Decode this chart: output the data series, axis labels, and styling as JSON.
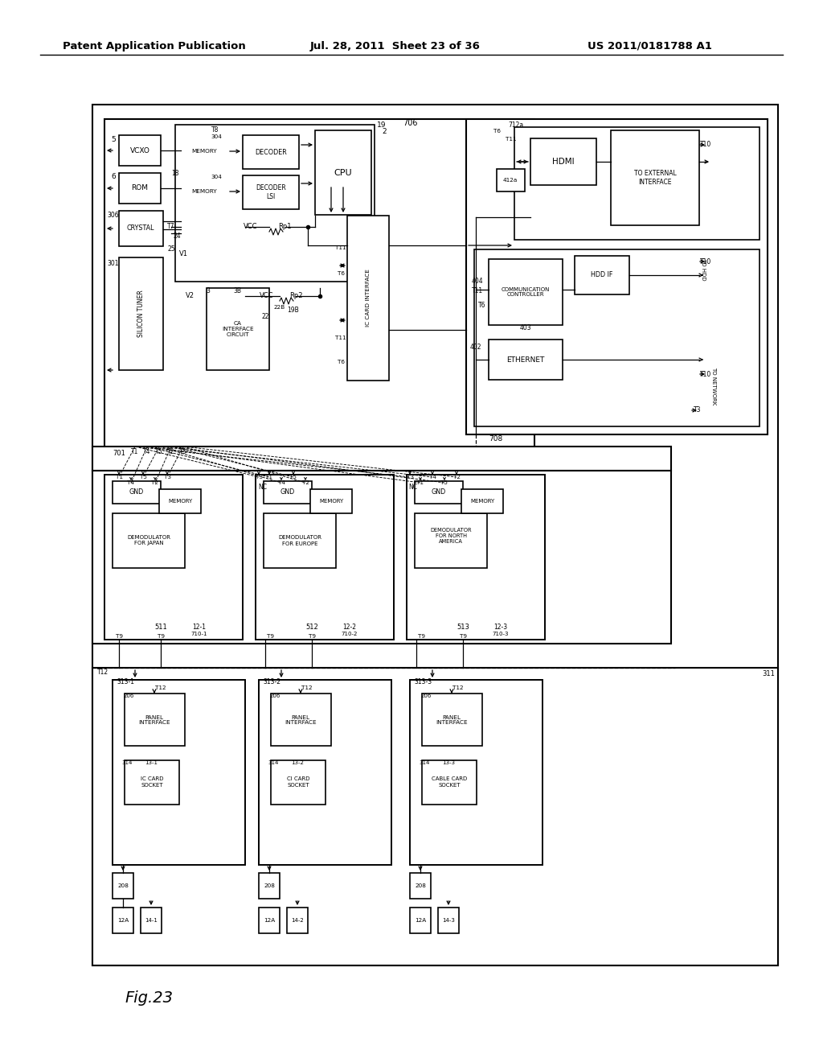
{
  "bg_color": "#ffffff",
  "header_left": "Patent Application Publication",
  "header_center": "Jul. 28, 2011  Sheet 23 of 36",
  "header_right": "US 2011/0181788 A1",
  "fig_label": "Fig.23"
}
